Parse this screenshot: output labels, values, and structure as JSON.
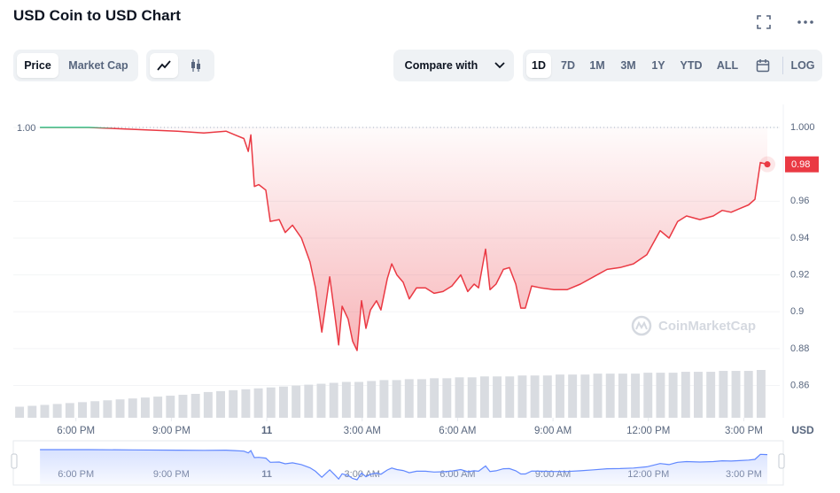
{
  "toolbar": {
    "tabs": [
      "Price",
      "Market Cap"
    ],
    "compare": "Compare with",
    "ranges": [
      "1D",
      "7D",
      "1M",
      "3M",
      "1Y",
      "YTD",
      "ALL"
    ],
    "log": "LOG"
  },
  "chart_data": {
    "type": "area",
    "title": "USD Coin to USD Chart",
    "watermark": "CoinMarketCap",
    "currency": "USD",
    "baseline": {
      "value": 1.0,
      "label": "1.00"
    },
    "last_label": "0.98",
    "xlim": [
      16.03,
      40.13
    ],
    "xticks": [
      {
        "value": 18,
        "label": "6:00 PM"
      },
      {
        "value": 21,
        "label": "9:00 PM"
      },
      {
        "value": 24,
        "label": "11"
      },
      {
        "value": 27,
        "label": "3:00 AM"
      },
      {
        "value": 30,
        "label": "6:00 AM"
      },
      {
        "value": 33,
        "label": "9:00 AM"
      },
      {
        "value": 36,
        "label": "12:00 PM"
      },
      {
        "value": 39,
        "label": "3:00 PM"
      }
    ],
    "ylim": [
      0.8425,
      1.0125
    ],
    "yticks": [
      {
        "value": 1.0,
        "label": "1.000"
      },
      0.96,
      0.94,
      0.92,
      0.9,
      0.88,
      0.86
    ],
    "grid": true,
    "series": [
      {
        "name": "Price",
        "color": "#ea3943",
        "up_color": "#16c784",
        "x": [
          16.87,
          18.4,
          19.79,
          21.19,
          22.02,
          22.72,
          23.0,
          23.28,
          23.42,
          23.5,
          23.61,
          23.75,
          23.97,
          24.11,
          24.39,
          24.58,
          24.81,
          25.09,
          25.36,
          25.53,
          25.73,
          25.98,
          26.14,
          26.26,
          26.37,
          26.56,
          26.7,
          26.84,
          26.98,
          27.12,
          27.26,
          27.45,
          27.59,
          27.79,
          27.93,
          28.09,
          28.29,
          28.48,
          28.71,
          28.99,
          29.26,
          29.54,
          29.82,
          30.1,
          30.32,
          30.52,
          30.66,
          30.88,
          31.02,
          31.21,
          31.44,
          31.63,
          31.83,
          31.99,
          32.13,
          32.33,
          32.61,
          33.03,
          33.44,
          33.86,
          34.28,
          34.7,
          35.11,
          35.53,
          35.95,
          36.37,
          36.65,
          36.92,
          37.2,
          37.62,
          38.04,
          38.32,
          38.6,
          38.87,
          39.15,
          39.35,
          39.52,
          39.74
        ],
        "values": [
          1.0,
          1.0,
          0.999,
          0.998,
          0.997,
          0.998,
          0.996,
          0.994,
          0.987,
          0.996,
          0.968,
          0.969,
          0.966,
          0.949,
          0.95,
          0.943,
          0.947,
          0.94,
          0.927,
          0.913,
          0.889,
          0.919,
          0.898,
          0.882,
          0.903,
          0.896,
          0.884,
          0.879,
          0.906,
          0.891,
          0.901,
          0.906,
          0.901,
          0.918,
          0.926,
          0.92,
          0.916,
          0.907,
          0.913,
          0.913,
          0.91,
          0.911,
          0.914,
          0.92,
          0.911,
          0.915,
          0.913,
          0.934,
          0.912,
          0.915,
          0.923,
          0.924,
          0.915,
          0.902,
          0.902,
          0.914,
          0.913,
          0.912,
          0.912,
          0.915,
          0.919,
          0.923,
          0.924,
          0.926,
          0.931,
          0.944,
          0.94,
          0.949,
          0.952,
          0.95,
          0.952,
          0.955,
          0.954,
          0.956,
          0.958,
          0.961,
          0.981,
          0.98
        ]
      }
    ],
    "volume": {
      "color": "#d9dce1",
      "values": [
        12,
        13,
        14,
        15,
        16,
        17,
        18,
        19,
        20,
        21,
        22,
        23,
        24,
        25,
        26,
        28,
        29,
        30,
        31,
        32,
        33,
        34,
        35,
        36,
        37,
        38,
        39,
        39,
        40,
        41,
        41,
        42,
        42,
        43,
        43,
        44,
        44,
        45,
        45,
        45,
        46,
        46,
        46,
        47,
        47,
        47,
        48,
        48,
        48,
        48,
        49,
        49,
        49,
        50,
        50,
        50,
        51,
        51,
        51,
        52
      ]
    },
    "navigator_color": "#6188ff"
  }
}
